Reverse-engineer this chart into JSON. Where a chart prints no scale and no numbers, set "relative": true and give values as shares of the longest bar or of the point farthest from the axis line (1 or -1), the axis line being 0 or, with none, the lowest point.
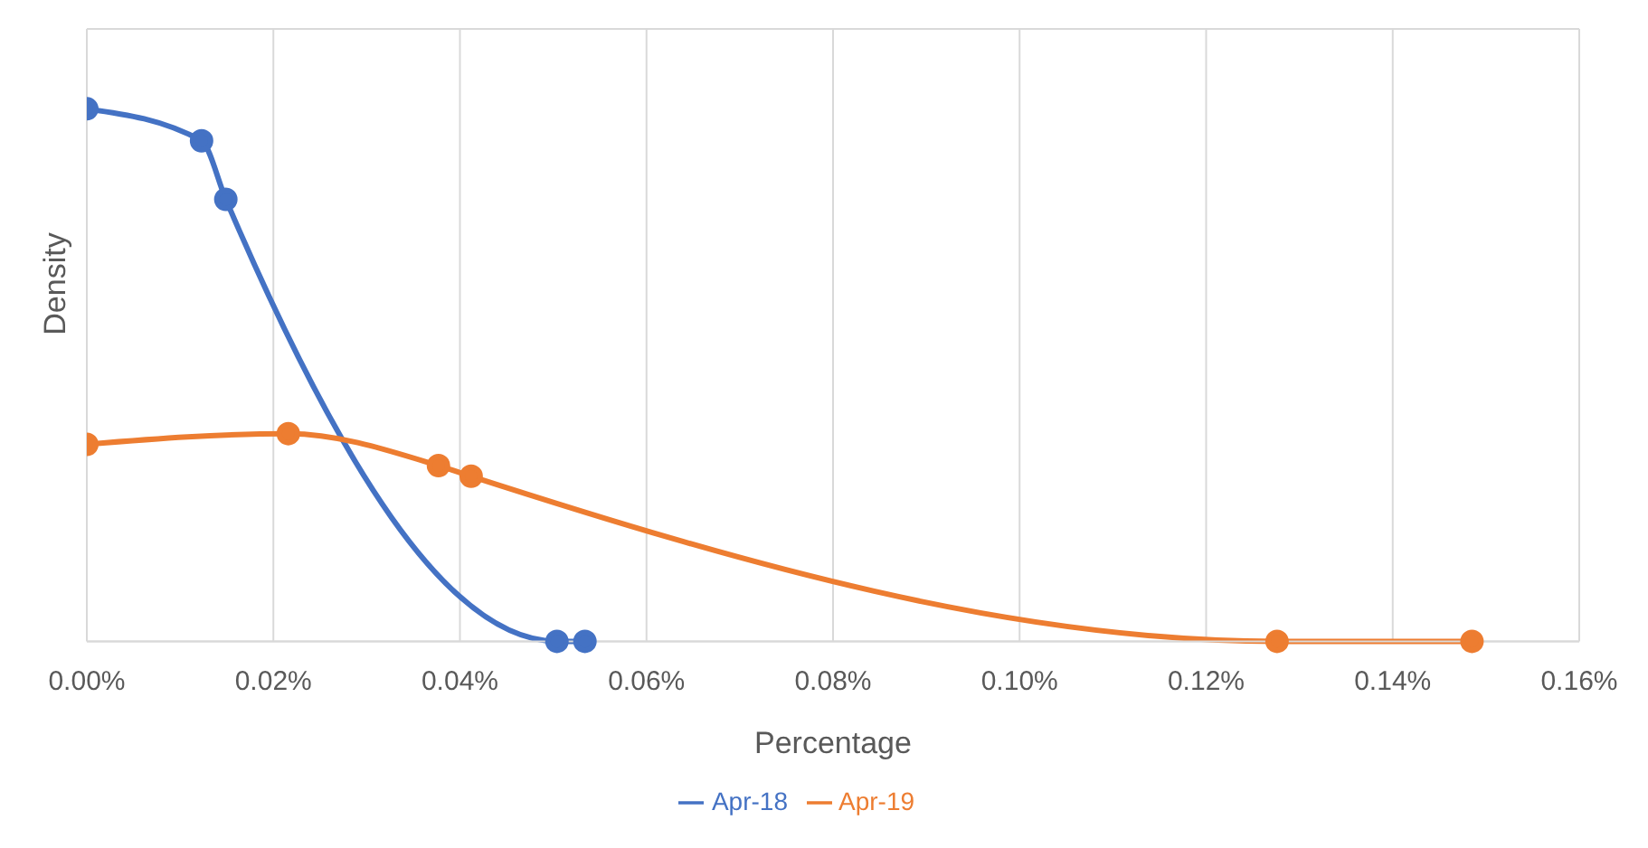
{
  "chart_data": {
    "type": "line",
    "xlabel": "Percentage",
    "ylabel": "Density",
    "relative": true,
    "xlim": [
      0,
      0.16
    ],
    "xticks": [
      {
        "value": 0,
        "label": "0.00%"
      },
      {
        "value": 0.02,
        "label": "0.02%"
      },
      {
        "value": 0.04,
        "label": "0.04%"
      },
      {
        "value": 0.06,
        "label": "0.06%"
      },
      {
        "value": 0.08,
        "label": "0.08%"
      },
      {
        "value": 0.1,
        "label": "0.10%"
      },
      {
        "value": 0.12,
        "label": "0.12%"
      },
      {
        "value": 0.14,
        "label": "0.14%"
      },
      {
        "value": 0.16,
        "label": "0.16%"
      }
    ],
    "series": [
      {
        "name": "Apr-18",
        "color": "#4472c4",
        "x": [
          0,
          0.0123,
          0.0149,
          0.0504,
          0.0534
        ],
        "values": [
          1,
          0.94,
          0.83,
          0,
          0
        ]
      },
      {
        "name": "Apr-19",
        "color": "#ed7d31",
        "x": [
          0,
          0.0216,
          0.0377,
          0.0412,
          0.1276,
          0.1485
        ],
        "values": [
          0.37,
          0.39,
          0.33,
          0.31,
          0,
          0
        ]
      }
    ],
    "grid": true,
    "legend": "bottom",
    "marker": "circle",
    "line_style": "solid"
  }
}
